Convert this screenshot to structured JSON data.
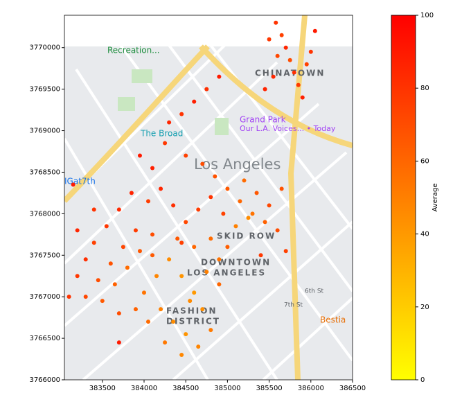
{
  "chart_data": {
    "type": "scatter",
    "xlim": [
      383045,
      386500
    ],
    "xticks": [
      383500,
      384000,
      384500,
      385000,
      385500,
      386000,
      386500
    ],
    "ylim": [
      3766000,
      3770390
    ],
    "yticks": [
      3766000,
      3766500,
      3767000,
      3767500,
      3768000,
      3768500,
      3769000,
      3769500,
      3770000
    ],
    "colormap": [
      "#ffff00",
      "#ff0000"
    ],
    "clim": [
      0,
      100
    ],
    "cticks": [
      0,
      20,
      40,
      60,
      80,
      100
    ],
    "colorbar_label": "Average",
    "map_labels": [
      "Recreation...",
      "The Broad",
      "Grand Park",
      "Our L.A. Voices... • Today",
      "Los Angeles",
      "IGat7th",
      "CHINATOWN",
      "SKID ROW",
      "DOWNTOWN",
      "LOS ANGELES",
      "FASHION",
      "DISTRICT",
      "Bestia",
      "6th St",
      "7th St"
    ],
    "x": [
      385580,
      385650,
      385700,
      385750,
      385800,
      385850,
      385900,
      385600,
      385550,
      385950,
      386000,
      386050,
      385450,
      385500,
      384300,
      384450,
      384600,
      384750,
      384900,
      384250,
      384500,
      384700,
      384850,
      385000,
      385150,
      385300,
      385450,
      385600,
      385200,
      385350,
      385500,
      385650,
      385100,
      385250,
      384950,
      384800,
      384650,
      384500,
      384350,
      384200,
      384100,
      383950,
      384050,
      384400,
      384600,
      384800,
      385000,
      385700,
      385400,
      383100,
      383200,
      383300,
      383400,
      383550,
      383700,
      383850,
      383300,
      383450,
      383600,
      383750,
      383900,
      383500,
      383650,
      383800,
      383950,
      384100,
      383200,
      383400,
      383150,
      384000,
      384150,
      384300,
      384450,
      384600,
      384750,
      384900,
      384200,
      384350,
      384500,
      384650,
      384800,
      384050,
      384250,
      384450,
      384700,
      384550,
      384900,
      383900,
      383700,
      384100,
      383700,
      384450
    ],
    "y": [
      3770300,
      3770150,
      3770000,
      3769850,
      3769700,
      3769550,
      3769400,
      3769900,
      3769650,
      3769800,
      3769950,
      3770200,
      3769500,
      3770100,
      3769100,
      3769200,
      3769350,
      3769500,
      3769650,
      3768850,
      3768700,
      3768600,
      3768450,
      3768300,
      3768150,
      3768000,
      3767900,
      3767800,
      3768400,
      3768250,
      3768100,
      3768300,
      3767850,
      3767950,
      3768000,
      3768200,
      3768050,
      3767900,
      3768100,
      3768300,
      3768550,
      3768700,
      3768150,
      3767700,
      3767600,
      3767700,
      3767600,
      3767550,
      3767500,
      3767000,
      3767250,
      3767450,
      3767650,
      3767850,
      3768050,
      3768250,
      3767000,
      3767200,
      3767400,
      3767600,
      3767800,
      3766950,
      3767150,
      3767350,
      3767550,
      3767750,
      3767800,
      3768050,
      3768350,
      3767050,
      3767250,
      3767450,
      3767250,
      3767050,
      3767300,
      3767450,
      3766850,
      3766700,
      3766550,
      3766400,
      3766600,
      3766700,
      3766450,
      3766300,
      3766850,
      3766950,
      3767150,
      3766850,
      3766800,
      3767500,
      3766450,
      3767650
    ],
    "values": [
      80,
      75,
      85,
      70,
      82,
      78,
      88,
      72,
      85,
      74,
      80,
      90,
      86,
      78,
      85,
      80,
      88,
      82,
      90,
      78,
      75,
      70,
      68,
      65,
      60,
      55,
      62,
      70,
      58,
      66,
      72,
      68,
      50,
      45,
      74,
      80,
      77,
      72,
      82,
      85,
      88,
      90,
      76,
      66,
      60,
      58,
      63,
      75,
      78,
      80,
      78,
      82,
      75,
      79,
      84,
      86,
      72,
      70,
      68,
      73,
      77,
      65,
      62,
      58,
      66,
      70,
      85,
      80,
      90,
      55,
      48,
      45,
      42,
      40,
      50,
      55,
      50,
      45,
      42,
      48,
      52,
      58,
      53,
      47,
      44,
      46,
      60,
      62,
      70,
      65,
      90,
      75
    ]
  }
}
